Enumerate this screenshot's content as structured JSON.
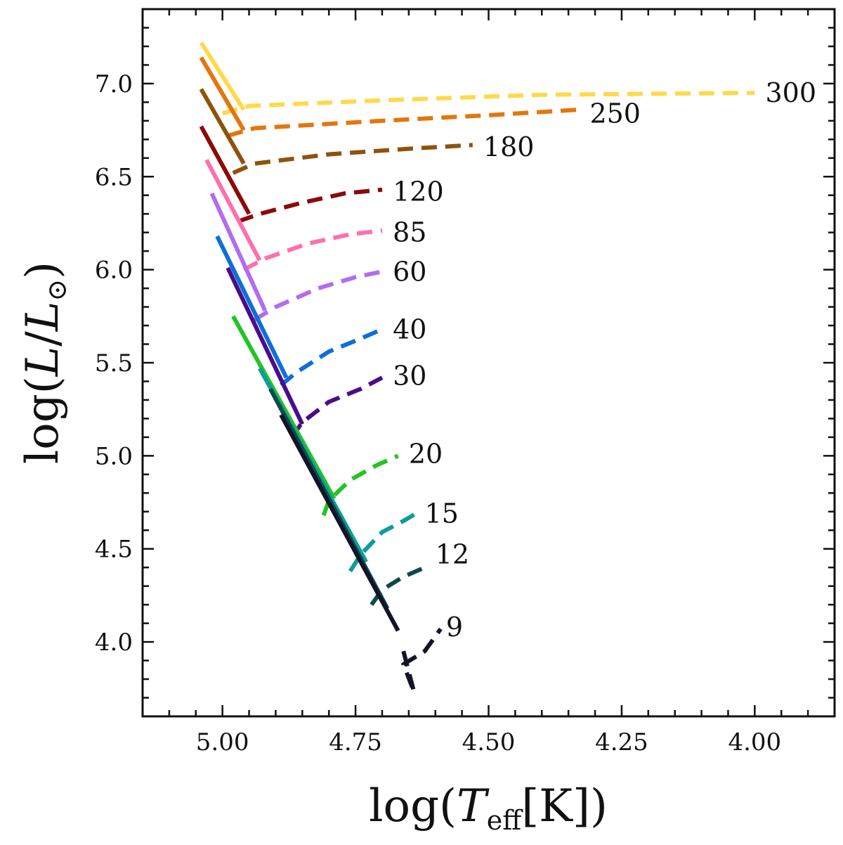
{
  "chart_data": {
    "type": "line",
    "title": "",
    "xlabel": "log(T_eff[K])",
    "ylabel": "log(L/L_⊙)",
    "xlabel_parts": {
      "prefix": "log(",
      "symbol": "T",
      "subscript": "eff",
      "suffix": "[K])"
    },
    "ylabel_parts": {
      "prefix": "log(",
      "symbol": "L",
      "slash": "/",
      "symbol2": "L",
      "subscript": "⊙",
      "suffix": ")"
    },
    "xlim": [
      5.15,
      3.85
    ],
    "ylim": [
      3.6,
      7.4
    ],
    "x_inverted": true,
    "xticks": [
      5.0,
      4.75,
      4.5,
      4.25,
      4.0
    ],
    "xtick_labels": [
      "5.00",
      "4.75",
      "4.50",
      "4.25",
      "4.00"
    ],
    "yticks": [
      4.0,
      4.5,
      5.0,
      5.5,
      6.0,
      6.5,
      7.0
    ],
    "ytick_labels": [
      "4.0",
      "4.5",
      "5.0",
      "5.5",
      "6.0",
      "6.5",
      "7.0"
    ],
    "grid": false,
    "legend": "none",
    "series": [
      {
        "name": "300",
        "color": "#FFD94A",
        "solid": [
          [
            5.04,
            7.22
          ],
          [
            4.96,
            6.86
          ]
        ],
        "dashed": [
          [
            5.0,
            6.84
          ],
          [
            4.95,
            6.88
          ],
          [
            4.7,
            6.91
          ],
          [
            4.4,
            6.94
          ],
          [
            4.0,
            6.95
          ]
        ],
        "label_at": [
          3.98,
          6.95
        ]
      },
      {
        "name": "250",
        "color": "#E3760D",
        "solid": [
          [
            5.04,
            7.14
          ],
          [
            4.96,
            6.75
          ]
        ],
        "dashed": [
          [
            4.99,
            6.72
          ],
          [
            4.94,
            6.76
          ],
          [
            4.7,
            6.8
          ],
          [
            4.5,
            6.83
          ],
          [
            4.33,
            6.86
          ]
        ],
        "label_at": [
          4.31,
          6.84
        ]
      },
      {
        "name": "180",
        "color": "#8F520C",
        "solid": [
          [
            5.04,
            6.97
          ],
          [
            4.96,
            6.57
          ]
        ],
        "dashed": [
          [
            4.98,
            6.52
          ],
          [
            4.94,
            6.57
          ],
          [
            4.8,
            6.62
          ],
          [
            4.65,
            6.65
          ],
          [
            4.53,
            6.67
          ]
        ],
        "label_at": [
          4.51,
          6.66
        ]
      },
      {
        "name": "120",
        "color": "#8B0A0A",
        "solid": [
          [
            5.04,
            6.77
          ],
          [
            4.95,
            6.3
          ]
        ],
        "dashed": [
          [
            4.97,
            6.26
          ],
          [
            4.93,
            6.3
          ],
          [
            4.85,
            6.36
          ],
          [
            4.77,
            6.41
          ],
          [
            4.7,
            6.43
          ]
        ],
        "label_at": [
          4.68,
          6.42
        ]
      },
      {
        "name": "85",
        "color": "#FF6FAE",
        "solid": [
          [
            5.03,
            6.59
          ],
          [
            4.93,
            6.05
          ]
        ],
        "dashed": [
          [
            4.96,
            6.0
          ],
          [
            4.92,
            6.06
          ],
          [
            4.84,
            6.14
          ],
          [
            4.76,
            6.19
          ],
          [
            4.7,
            6.21
          ]
        ],
        "label_at": [
          4.68,
          6.2
        ]
      },
      {
        "name": "60",
        "color": "#B26BF2",
        "solid": [
          [
            5.02,
            6.41
          ],
          [
            4.92,
            5.78
          ]
        ],
        "dashed": [
          [
            4.94,
            5.73
          ],
          [
            4.9,
            5.8
          ],
          [
            4.82,
            5.9
          ],
          [
            4.75,
            5.96
          ],
          [
            4.7,
            5.99
          ]
        ],
        "label_at": [
          4.68,
          5.99
        ]
      },
      {
        "name": "40",
        "color": "#0E6FD8",
        "solid": [
          [
            5.01,
            6.18
          ],
          [
            4.88,
            5.42
          ]
        ],
        "dashed": [
          [
            4.89,
            5.38
          ],
          [
            4.86,
            5.45
          ],
          [
            4.8,
            5.56
          ],
          [
            4.74,
            5.63
          ],
          [
            4.7,
            5.68
          ]
        ],
        "label_at": [
          4.68,
          5.68
        ]
      },
      {
        "name": "30",
        "color": "#4B0C8C",
        "solid": [
          [
            4.99,
            6.01
          ],
          [
            4.85,
            5.17
          ]
        ],
        "dashed": [
          [
            4.87,
            5.1
          ],
          [
            4.85,
            5.18
          ],
          [
            4.8,
            5.29
          ],
          [
            4.74,
            5.36
          ],
          [
            4.7,
            5.42
          ]
        ],
        "label_at": [
          4.68,
          5.43
        ]
      },
      {
        "name": "20",
        "color": "#22C522",
        "solid": [
          [
            4.98,
            5.75
          ],
          [
            4.79,
            4.77
          ]
        ],
        "dashed": [
          [
            4.81,
            4.68
          ],
          [
            4.8,
            4.76
          ],
          [
            4.76,
            4.87
          ],
          [
            4.71,
            4.95
          ],
          [
            4.67,
            5.0
          ]
        ],
        "label_at": [
          4.65,
          5.01
        ]
      },
      {
        "name": "15",
        "color": "#0E9C9C",
        "solid": [
          [
            4.93,
            5.47
          ],
          [
            4.73,
            4.43
          ]
        ],
        "dashed": [
          [
            4.76,
            4.38
          ],
          [
            4.74,
            4.47
          ],
          [
            4.7,
            4.59
          ],
          [
            4.66,
            4.65
          ],
          [
            4.63,
            4.7
          ]
        ],
        "label_at": [
          4.62,
          4.69
        ]
      },
      {
        "name": "12",
        "color": "#0B4A4A",
        "solid": [
          [
            4.91,
            5.36
          ],
          [
            4.69,
            4.18
          ]
        ],
        "dashed": [
          [
            4.72,
            4.2
          ],
          [
            4.7,
            4.28
          ],
          [
            4.66,
            4.35
          ],
          [
            4.62,
            4.4
          ]
        ],
        "label_at": [
          4.6,
          4.47
        ]
      },
      {
        "name": "9",
        "color": "#141428",
        "solid": [
          [
            4.89,
            5.22
          ],
          [
            4.67,
            4.06
          ]
        ],
        "dashed": [
          [
            4.66,
            3.95
          ],
          [
            4.64,
            3.73
          ],
          [
            4.66,
            3.88
          ],
          [
            4.62,
            3.95
          ],
          [
            4.59,
            4.07
          ]
        ],
        "label_at": [
          4.58,
          4.08
        ]
      }
    ]
  }
}
